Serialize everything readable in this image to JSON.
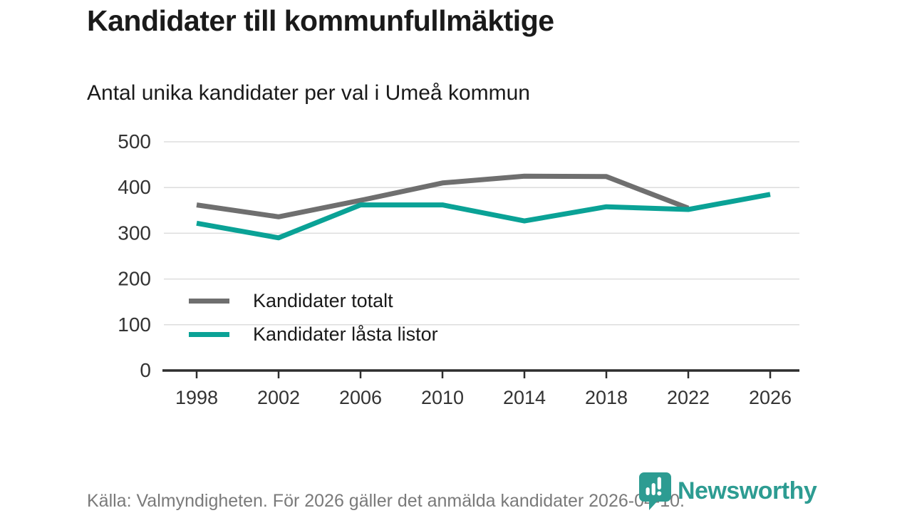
{
  "header": {
    "title": "Kandidater till kommunfullmäktige",
    "subtitle": "Antal unika kandidater per val i Umeå kommun"
  },
  "chart_data": {
    "type": "line",
    "title": "Kandidater till kommunfullmäktige",
    "subtitle": "Antal unika kandidater per val i Umeå kommun",
    "categories": [
      "1998",
      "2002",
      "2006",
      "2010",
      "2014",
      "2018",
      "2022",
      "2026"
    ],
    "series": [
      {
        "name": "Kandidater totalt",
        "color": "#6f6f6f",
        "values": [
          362,
          336,
          372,
          410,
          425,
          424,
          355,
          null
        ]
      },
      {
        "name": "Kandidater låsta listor",
        "color": "#0aa296",
        "values": [
          322,
          290,
          362,
          362,
          327,
          358,
          352,
          385
        ]
      }
    ],
    "xlabel": "",
    "ylabel": "",
    "ylim": [
      0,
      500
    ],
    "yticks": [
      0,
      100,
      200,
      300,
      400,
      500
    ],
    "grid": true,
    "legend_position": "inside-left"
  },
  "footer": {
    "source": "Källa: Valmyndigheten. För 2026 gäller det anmälda kandidater 2026-04-10."
  },
  "logo": {
    "text": "Newsworthy",
    "icon": "newsworthy-pin-barchart-icon"
  },
  "colors": {
    "accent_teal": "#0aa296",
    "line_gray": "#6f6f6f",
    "grid": "#dddddd",
    "axis": "#2e2e2e",
    "tick_label": "#333333",
    "footer_text": "#7a7a7a",
    "logo_teal": "#2d9c92"
  }
}
